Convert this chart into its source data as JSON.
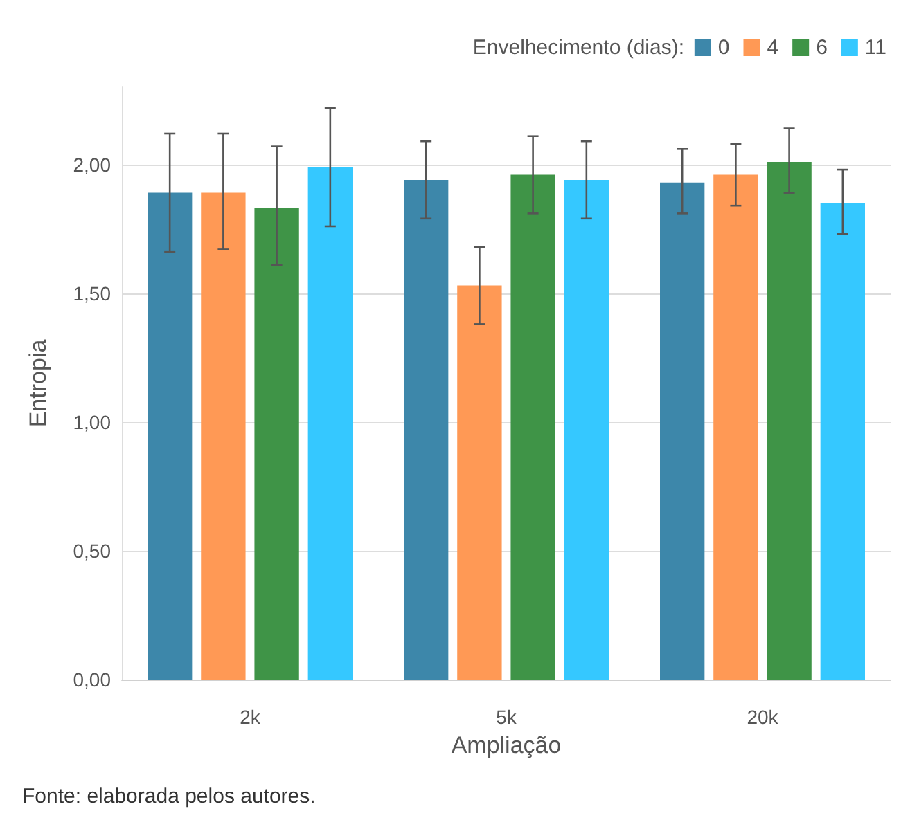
{
  "chart_data": {
    "type": "bar",
    "xlabel": "Ampliação",
    "ylabel": "Entropia",
    "legend_title": "Envelhecimento (dias):",
    "categories": [
      "2k",
      "5k",
      "20k"
    ],
    "series": [
      {
        "name": "0",
        "color": "#3d87aa",
        "values": [
          1.89,
          1.94,
          1.93
        ],
        "errors": [
          [
            1.66,
            2.12
          ],
          [
            1.79,
            2.09
          ],
          [
            1.81,
            2.06
          ]
        ]
      },
      {
        "name": "4",
        "color": "#ff9955",
        "values": [
          1.89,
          1.53,
          1.96
        ],
        "errors": [
          [
            1.67,
            2.12
          ],
          [
            1.38,
            1.68
          ],
          [
            1.84,
            2.08
          ]
        ]
      },
      {
        "name": "6",
        "color": "#3f9447",
        "values": [
          1.83,
          1.96,
          2.01
        ],
        "errors": [
          [
            1.61,
            2.07
          ],
          [
            1.81,
            2.11
          ],
          [
            1.89,
            2.14
          ]
        ]
      },
      {
        "name": "11",
        "color": "#35c8ff",
        "values": [
          1.99,
          1.94,
          1.85
        ],
        "errors": [
          [
            1.76,
            2.22
          ],
          [
            1.79,
            2.09
          ],
          [
            1.73,
            1.98
          ]
        ]
      }
    ],
    "ylim": [
      0,
      2.3
    ],
    "yticks": [
      {
        "value": 0,
        "label": "0,00"
      },
      {
        "value": 0.5,
        "label": "0,50"
      },
      {
        "value": 1,
        "label": "1,00"
      },
      {
        "value": 1.5,
        "label": "1,50"
      },
      {
        "value": 2,
        "label": "2,00"
      }
    ],
    "grid": "y",
    "legend": "top right",
    "annotations": [
      "Fonte: elaborada pelos autores."
    ]
  }
}
